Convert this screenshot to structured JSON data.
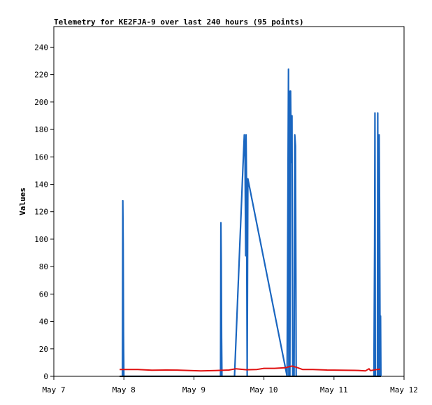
{
  "chart_data": {
    "type": "line",
    "title": "Telemetry for KE2FJA-9 over last 240 hours (95 points)",
    "xlabel": "",
    "ylabel": "Values",
    "x_ticks": [
      "May 7",
      "May 8",
      "May 9",
      "May 10",
      "May 11",
      "May 12"
    ],
    "y_ticks": [
      0,
      20,
      40,
      60,
      80,
      100,
      120,
      140,
      160,
      180,
      200,
      220,
      240
    ],
    "xlim": [
      0,
      5
    ],
    "ylim": [
      0,
      255
    ],
    "x_unit": "days since May 7",
    "grid": false,
    "series": [
      {
        "name": "",
        "color": "#1a66c0",
        "points": [
          [
            0.98,
            0
          ],
          [
            0.985,
            128
          ],
          [
            0.99,
            96
          ],
          [
            0.995,
            32
          ],
          [
            1.0,
            0
          ],
          [
            2.38,
            0
          ],
          [
            2.385,
            112
          ],
          [
            2.39,
            84
          ],
          [
            2.395,
            28
          ],
          [
            2.4,
            0
          ],
          [
            2.58,
            0
          ],
          [
            2.7,
            152
          ],
          [
            2.72,
            176
          ],
          [
            2.73,
            160
          ],
          [
            2.74,
            88
          ],
          [
            2.745,
            176
          ],
          [
            2.75,
            144
          ],
          [
            2.76,
            0
          ],
          [
            2.77,
            144
          ],
          [
            3.33,
            0
          ],
          [
            3.35,
            224
          ],
          [
            3.355,
            0
          ],
          [
            3.36,
            208
          ],
          [
            3.37,
            0
          ],
          [
            3.38,
            208
          ],
          [
            3.39,
            156
          ],
          [
            3.4,
            190
          ],
          [
            3.41,
            0
          ],
          [
            3.42,
            16
          ],
          [
            3.43,
            0
          ],
          [
            3.44,
            176
          ],
          [
            3.45,
            168
          ],
          [
            3.46,
            0
          ],
          [
            4.57,
            0
          ],
          [
            4.58,
            96
          ],
          [
            4.585,
            192
          ],
          [
            4.59,
            0
          ],
          [
            4.62,
            0
          ],
          [
            4.625,
            192
          ],
          [
            4.63,
            0
          ],
          [
            4.64,
            0
          ],
          [
            4.645,
            176
          ],
          [
            4.65,
            132
          ],
          [
            4.66,
            0
          ],
          [
            4.665,
            44
          ],
          [
            4.67,
            0
          ]
        ]
      },
      {
        "name": "",
        "color": "#e01010",
        "points": [
          [
            0.94,
            5
          ],
          [
            1.1,
            5
          ],
          [
            1.2,
            5
          ],
          [
            1.4,
            4.5
          ],
          [
            1.6,
            4.6
          ],
          [
            1.8,
            4.5
          ],
          [
            2.1,
            4.0
          ],
          [
            2.3,
            4.2
          ],
          [
            2.5,
            4.6
          ],
          [
            2.6,
            5.5
          ],
          [
            2.75,
            4.8
          ],
          [
            2.9,
            5.0
          ],
          [
            3.0,
            5.8
          ],
          [
            3.15,
            5.8
          ],
          [
            3.3,
            6.2
          ],
          [
            3.4,
            7.5
          ],
          [
            3.47,
            6.5
          ],
          [
            3.55,
            5.0
          ],
          [
            3.7,
            5.0
          ],
          [
            3.9,
            4.6
          ],
          [
            4.1,
            4.5
          ],
          [
            4.35,
            4.3
          ],
          [
            4.45,
            4.0
          ],
          [
            4.5,
            5.5
          ],
          [
            4.52,
            4.2
          ],
          [
            4.62,
            5.0
          ],
          [
            4.66,
            5.2
          ]
        ]
      },
      {
        "name": "",
        "color": "#000000",
        "points": [
          [
            0.94,
            0
          ],
          [
            4.67,
            0
          ]
        ]
      }
    ]
  }
}
